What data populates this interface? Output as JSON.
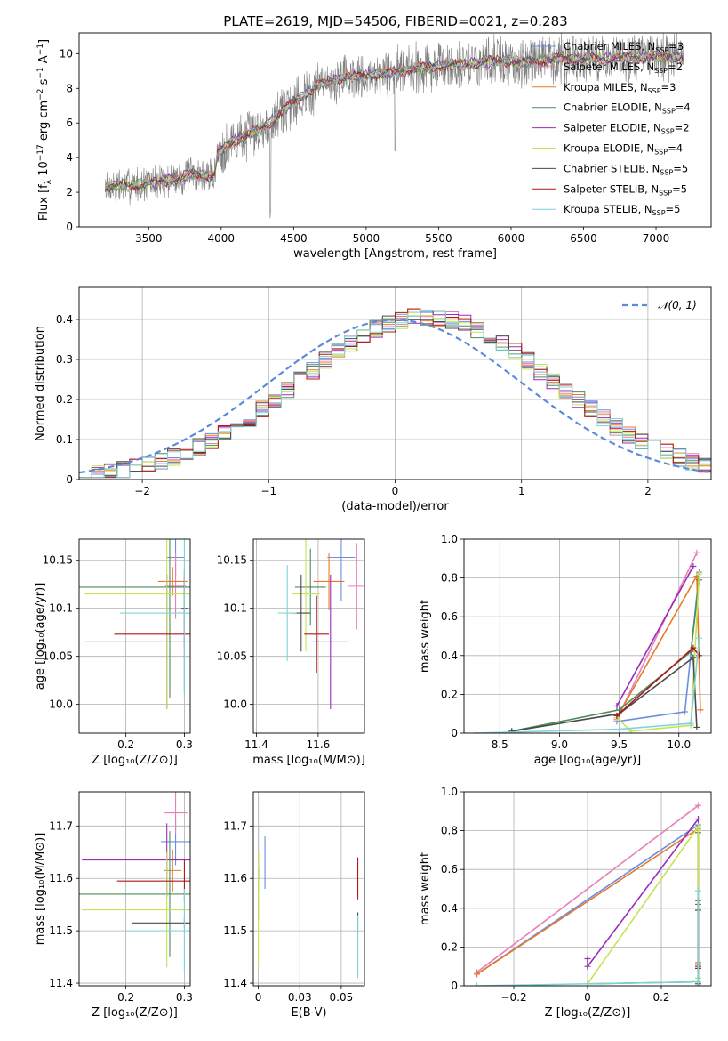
{
  "figure": {
    "title": "PLATE=2619, MJD=54506, FIBERID=0021, z=0.283"
  },
  "series_styles": [
    {
      "name": "Chabrier MILES, N_SSP=3",
      "color": "#6a8fe0"
    },
    {
      "name": "Salpeter MILES, N_SSP=2",
      "color": "#e87fb8"
    },
    {
      "name": "Kroupa MILES, N_SSP=3",
      "color": "#e8792a"
    },
    {
      "name": "Chabrier ELODIE, N_SSP=4",
      "color": "#4f8a5b"
    },
    {
      "name": "Salpeter ELODIE, N_SSP=2",
      "color": "#9a2db8"
    },
    {
      "name": "Kroupa ELODIE, N_SSP=4",
      "color": "#c5e352"
    },
    {
      "name": "Chabrier STELIB, N_SSP=5",
      "color": "#4a4a4a"
    },
    {
      "name": "Salpeter STELIB, N_SSP=5",
      "color": "#b01818"
    },
    {
      "name": "Kroupa STELIB, N_SSP=5",
      "color": "#7fd3d8"
    }
  ],
  "chart_data": [
    {
      "id": "spectrum",
      "type": "line",
      "title": "PLATE=2619, MJD=54506, FIBERID=0021, z=0.283",
      "xlabel": "wavelength [Angstrom, rest frame]",
      "ylabel": "Flux [f_λ 10^-17 erg cm^-2 s^-1 A^-1]",
      "xlim": [
        3020,
        7380
      ],
      "ylim": [
        0,
        11.2
      ],
      "xticks": [
        3500,
        4000,
        4500,
        5000,
        5500,
        6000,
        6500,
        7000
      ],
      "yticks": [
        0,
        2,
        4,
        6,
        8,
        10
      ],
      "legend": {
        "position": "top-right",
        "entries": [
          {
            "base": "Chabrier MILES, N",
            "sub": "SSP",
            "tail": "=3"
          },
          {
            "base": "Salpeter MILES, N",
            "sub": "SSP",
            "tail": "=2"
          },
          {
            "base": "Kroupa MILES, N",
            "sub": "SSP",
            "tail": "=3"
          },
          {
            "base": "Chabrier ELODIE, N",
            "sub": "SSP",
            "tail": "=4"
          },
          {
            "base": "Salpeter ELODIE, N",
            "sub": "SSP",
            "tail": "=2"
          },
          {
            "base": "Kroupa ELODIE, N",
            "sub": "SSP",
            "tail": "=4"
          },
          {
            "base": "Chabrier STELIB, N",
            "sub": "SSP",
            "tail": "=5"
          },
          {
            "base": "Salpeter STELIB, N",
            "sub": "SSP",
            "tail": "=5"
          },
          {
            "base": "Kroupa STELIB, N",
            "sub": "SSP",
            "tail": "=5"
          }
        ]
      },
      "data_range": [
        3200,
        7190
      ],
      "continuum_knots": [
        [
          3200,
          2.3
        ],
        [
          3500,
          2.5
        ],
        [
          3650,
          2.7
        ],
        [
          3800,
          3.0
        ],
        [
          3950,
          2.9
        ],
        [
          3980,
          4.3
        ],
        [
          4100,
          5.0
        ],
        [
          4300,
          5.8
        ],
        [
          4500,
          7.2
        ],
        [
          4700,
          8.3
        ],
        [
          4900,
          8.7
        ],
        [
          5100,
          8.8
        ],
        [
          5300,
          9.1
        ],
        [
          5500,
          9.3
        ],
        [
          5700,
          9.4
        ],
        [
          5900,
          9.6
        ],
        [
          6100,
          9.5
        ],
        [
          6300,
          9.7
        ],
        [
          6600,
          9.7
        ],
        [
          6900,
          9.8
        ],
        [
          7190,
          9.8
        ]
      ]
    },
    {
      "id": "residuals",
      "type": "step",
      "xlabel": "(data-model)/error",
      "ylabel": "Normed distribution",
      "xlim": [
        -2.5,
        2.5
      ],
      "ylim": [
        0,
        0.48
      ],
      "xticks": [
        -2,
        -1,
        0,
        1,
        2
      ],
      "yticks": [
        0.0,
        0.1,
        0.2,
        0.3,
        0.4
      ],
      "grid": true,
      "legend": {
        "position": "top-right",
        "entries": [
          "N(0,1)"
        ]
      },
      "reference_curve": "gaussian mean 0, sigma 1"
    },
    {
      "id": "age_vs_Z",
      "type": "errorbar",
      "xlabel": "Z [log10(Z/Z_sun)]",
      "ylabel": "age  [log10(age/yr)]",
      "xlim": [
        0.12,
        0.31
      ],
      "ylim": [
        9.97,
        10.172
      ],
      "xticks": [
        0.2,
        0.3
      ],
      "yticks": [
        10.0,
        10.05,
        10.1,
        10.15
      ],
      "grid": true,
      "points": [
        {
          "series": 0,
          "x": 0.285,
          "y": 10.153,
          "xerr": 0.015,
          "yerr": 0.02
        },
        {
          "series": 1,
          "x": 0.285,
          "y": 10.123,
          "xerr": 0.018,
          "yerr": 0.034
        },
        {
          "series": 2,
          "x": 0.28,
          "y": 10.128,
          "xerr": 0.025,
          "yerr": 0.015
        },
        {
          "series": 3,
          "x": 0.275,
          "y": 10.122,
          "xerr": 0.155,
          "yerr": 0.115
        },
        {
          "series": 4,
          "x": 0.27,
          "y": 10.065,
          "xerr": 0.14,
          "yerr": 0.07
        },
        {
          "series": 5,
          "x": 0.27,
          "y": 10.115,
          "xerr": 0.14,
          "yerr": 0.12
        },
        {
          "series": 6,
          "x": 0.3,
          "y": 10.1,
          "xerr": 0.005,
          "yerr": 0.04
        },
        {
          "series": 7,
          "x": 0.3,
          "y": 10.073,
          "xerr": 0.12,
          "yerr": 0.06
        },
        {
          "series": 8,
          "x": 0.3,
          "y": 10.095,
          "xerr": 0.11,
          "yerr": 0.09
        }
      ]
    },
    {
      "id": "age_vs_mass",
      "type": "errorbar",
      "xlabel": "mass [log10(M/M_sun)]",
      "ylabel": "",
      "xlim": [
        11.39,
        11.75
      ],
      "ylim": [
        9.97,
        10.172
      ],
      "xticks": [
        11.4,
        11.6
      ],
      "yticks": [
        10.0,
        10.05,
        10.1,
        10.15
      ],
      "grid": true,
      "points": [
        {
          "series": 0,
          "x": 11.675,
          "y": 10.153,
          "xerr": 0.045,
          "yerr": 0.045
        },
        {
          "series": 1,
          "x": 11.725,
          "y": 10.123,
          "xerr": 0.03,
          "yerr": 0.045
        },
        {
          "series": 2,
          "x": 11.635,
          "y": 10.128,
          "xerr": 0.05,
          "yerr": 0.03
        },
        {
          "series": 3,
          "x": 11.575,
          "y": 10.122,
          "xerr": 0.05,
          "yerr": 0.04
        },
        {
          "series": 4,
          "x": 11.64,
          "y": 10.065,
          "xerr": 0.06,
          "yerr": 0.07
        },
        {
          "series": 5,
          "x": 11.56,
          "y": 10.115,
          "xerr": 0.045,
          "yerr": 0.06
        },
        {
          "series": 6,
          "x": 11.545,
          "y": 10.095,
          "xerr": 0.03,
          "yerr": 0.04
        },
        {
          "series": 7,
          "x": 11.595,
          "y": 10.073,
          "xerr": 0.04,
          "yerr": 0.04
        },
        {
          "series": 8,
          "x": 11.5,
          "y": 10.095,
          "xerr": 0.03,
          "yerr": 0.05
        }
      ]
    },
    {
      "id": "mass_weight_vs_age",
      "type": "line",
      "xlabel": "age  [log10(age/yr)]",
      "ylabel": "mass weight",
      "xlim": [
        8.2,
        10.27
      ],
      "ylim": [
        0,
        1.0
      ],
      "xticks": [
        8.5,
        9.0,
        9.5,
        10.0
      ],
      "yticks": [
        0.0,
        0.2,
        0.4,
        0.6,
        0.8,
        1.0
      ],
      "grid": true,
      "series": [
        {
          "series": 0,
          "x": [
            9.48,
            10.05,
            10.17
          ],
          "y": [
            0.06,
            0.11,
            0.83
          ]
        },
        {
          "series": 1,
          "x": [
            9.48,
            10.15
          ],
          "y": [
            0.07,
            0.93
          ]
        },
        {
          "series": 2,
          "x": [
            9.48,
            10.15,
            10.18
          ],
          "y": [
            0.08,
            0.81,
            0.12
          ]
        },
        {
          "series": 3,
          "x": [
            8.6,
            9.5,
            10.1,
            10.17
          ],
          "y": [
            0.01,
            0.12,
            0.42,
            0.79
          ]
        },
        {
          "series": 4,
          "x": [
            9.48,
            10.12
          ],
          "y": [
            0.14,
            0.86
          ]
        },
        {
          "series": 5,
          "x": [
            9.48,
            9.6,
            10.1,
            10.17
          ],
          "y": [
            0.08,
            0.01,
            0.04,
            0.82
          ]
        },
        {
          "series": 6,
          "x": [
            8.6,
            9.5,
            10.12,
            10.15
          ],
          "y": [
            0.01,
            0.1,
            0.39,
            0.03
          ]
        },
        {
          "series": 7,
          "x": [
            9.48,
            10.12,
            10.17
          ],
          "y": [
            0.09,
            0.44,
            0.4
          ]
        },
        {
          "series": 8,
          "x": [
            8.3,
            9.5,
            10.1,
            10.17
          ],
          "y": [
            0.0,
            0.02,
            0.05,
            0.49
          ]
        }
      ]
    },
    {
      "id": "mass_vs_Z",
      "type": "errorbar",
      "xlabel": "Z [log10(Z/Z_sun)]",
      "ylabel": "mass [log10(M/M_sun)]",
      "xlim": [
        0.12,
        0.31
      ],
      "ylim": [
        11.395,
        11.765
      ],
      "xticks": [
        0.2,
        0.3
      ],
      "yticks": [
        11.4,
        11.5,
        11.6,
        11.7
      ],
      "grid": true,
      "points": [
        {
          "series": 0,
          "x": 0.285,
          "y": 11.67,
          "xerr": 0.025,
          "yerr": 0.045
        },
        {
          "series": 1,
          "x": 0.285,
          "y": 11.725,
          "xerr": 0.02,
          "yerr": 0.04
        },
        {
          "series": 2,
          "x": 0.28,
          "y": 11.615,
          "xerr": 0.015,
          "yerr": 0.04
        },
        {
          "series": 3,
          "x": 0.275,
          "y": 11.57,
          "xerr": 0.155,
          "yerr": 0.12
        },
        {
          "series": 4,
          "x": 0.27,
          "y": 11.635,
          "xerr": 0.145,
          "yerr": 0.07
        },
        {
          "series": 5,
          "x": 0.27,
          "y": 11.54,
          "xerr": 0.145,
          "yerr": 0.11
        },
        {
          "series": 6,
          "x": 0.3,
          "y": 11.515,
          "xerr": 0.09,
          "yerr": 0.01
        },
        {
          "series": 7,
          "x": 0.3,
          "y": 11.595,
          "xerr": 0.115,
          "yerr": 0.04
        },
        {
          "series": 8,
          "x": 0.3,
          "y": 11.5,
          "xerr": 0.1,
          "yerr": 0.08
        }
      ]
    },
    {
      "id": "mass_vs_ebv",
      "type": "errorbar",
      "xlabel": "E(B-V)",
      "ylabel": "",
      "xlim": [
        -0.003,
        0.064
      ],
      "ylim": [
        11.395,
        11.765
      ],
      "xticks": [
        0.0,
        0.025,
        0.05
      ],
      "yticks": [
        11.4,
        11.5,
        11.6,
        11.7
      ],
      "grid": true,
      "points": [
        {
          "series": 0,
          "x": 0.004,
          "y": 11.63,
          "xerr": 0.0,
          "yerr": 0.05
        },
        {
          "series": 1,
          "x": 0.001,
          "y": 11.72,
          "xerr": 0.0,
          "yerr": 0.04
        },
        {
          "series": 2,
          "x": 0.001,
          "y": 11.615,
          "xerr": 0.0,
          "yerr": 0.04
        },
        {
          "series": 3,
          "x": 0.0,
          "y": 11.57,
          "xerr": 0.0,
          "yerr": 0.05
        },
        {
          "series": 4,
          "x": 0.001,
          "y": 11.65,
          "xerr": 0.0,
          "yerr": 0.05
        },
        {
          "series": 5,
          "x": 0.0,
          "y": 11.54,
          "xerr": 0.0,
          "yerr": 0.11
        },
        {
          "series": 6,
          "x": 0.06,
          "y": 11.515,
          "xerr": 0.0,
          "yerr": 0.02
        },
        {
          "series": 7,
          "x": 0.06,
          "y": 11.6,
          "xerr": 0.0,
          "yerr": 0.04
        },
        {
          "series": 8,
          "x": 0.06,
          "y": 11.47,
          "xerr": 0.0,
          "yerr": 0.06
        }
      ]
    },
    {
      "id": "mass_weight_vs_Z",
      "type": "line",
      "xlabel": "Z [log10(Z/Z_sun)]",
      "ylabel": "mass weight",
      "xlim": [
        -0.335,
        0.335
      ],
      "ylim": [
        0,
        1.0
      ],
      "xticks": [
        -0.2,
        0.0,
        0.2
      ],
      "yticks": [
        0.0,
        0.2,
        0.4,
        0.6,
        0.8,
        1.0
      ],
      "grid": true,
      "series": [
        {
          "series": 0,
          "x": [
            -0.3,
            0.3,
            0.3
          ],
          "y": [
            0.06,
            0.83,
            0.11
          ]
        },
        {
          "series": 1,
          "x": [
            -0.3,
            0.3
          ],
          "y": [
            0.07,
            0.93
          ]
        },
        {
          "series": 2,
          "x": [
            -0.3,
            0.3,
            0.3
          ],
          "y": [
            0.06,
            0.81,
            0.12
          ]
        },
        {
          "series": 3,
          "x": [
            0.0,
            0.3,
            0.3,
            0.3
          ],
          "y": [
            0.01,
            0.02,
            0.42,
            0.79
          ]
        },
        {
          "series": 4,
          "x": [
            0.0,
            0.0,
            0.3
          ],
          "y": [
            0.14,
            0.1,
            0.86
          ]
        },
        {
          "series": 5,
          "x": [
            0.0,
            0.3,
            0.3
          ],
          "y": [
            0.01,
            0.82,
            0.04
          ]
        },
        {
          "series": 6,
          "x": [
            0.3,
            0.3,
            0.3
          ],
          "y": [
            0.01,
            0.39,
            0.1
          ]
        },
        {
          "series": 7,
          "x": [
            0.3,
            0.3
          ],
          "y": [
            0.44,
            0.09
          ]
        },
        {
          "series": 8,
          "x": [
            -0.3,
            0.3,
            0.3
          ],
          "y": [
            0.0,
            0.02,
            0.49
          ]
        }
      ]
    }
  ]
}
